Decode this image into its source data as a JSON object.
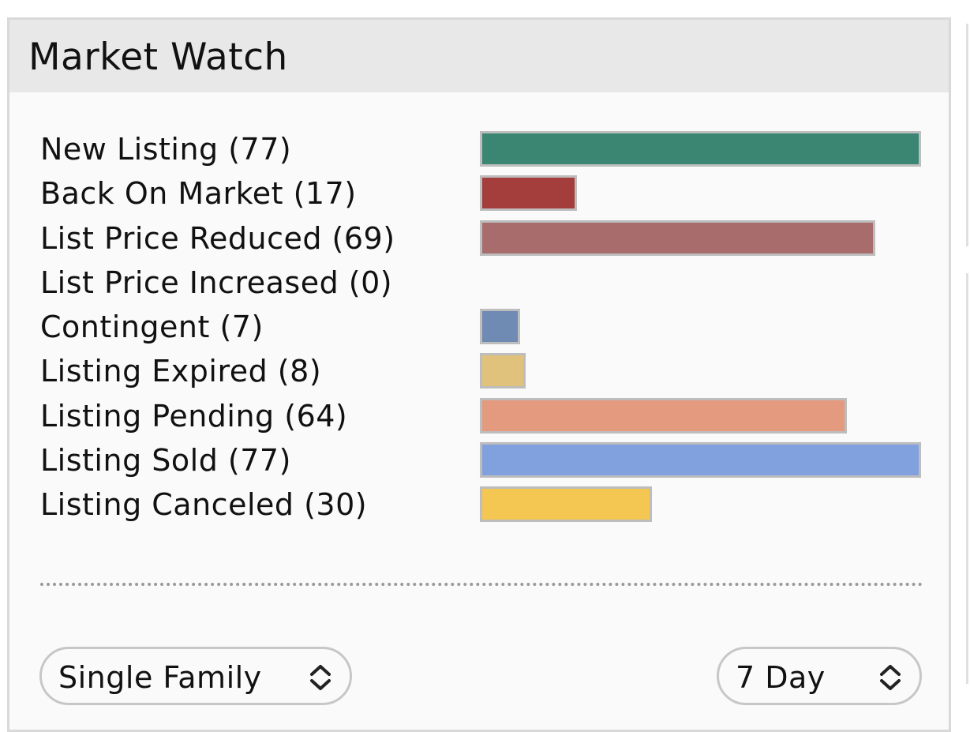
{
  "widget": {
    "title": "Market Watch",
    "max_count": 77,
    "rows": [
      {
        "label": "New Listing (77)",
        "count": 77,
        "color": "#3a8672"
      },
      {
        "label": "Back On Market (17)",
        "count": 17,
        "color": "#a33e3c"
      },
      {
        "label": "List Price Reduced (69)",
        "count": 69,
        "color": "#a86c6c"
      },
      {
        "label": "List Price Increased (0)",
        "count": 0,
        "color": "#999999"
      },
      {
        "label": "Contingent (7)",
        "count": 7,
        "color": "#6f8ab3"
      },
      {
        "label": "Listing Expired (8)",
        "count": 8,
        "color": "#e0c27d"
      },
      {
        "label": "Listing Pending (64)",
        "count": 64,
        "color": "#e39a7e"
      },
      {
        "label": "Listing Sold (77)",
        "count": 77,
        "color": "#80a1dd"
      },
      {
        "label": "Listing Canceled (30)",
        "count": 30,
        "color": "#f4c752"
      }
    ]
  },
  "filters": {
    "property_type": {
      "value": "Single Family"
    },
    "period": {
      "value": "7 Day"
    }
  }
}
